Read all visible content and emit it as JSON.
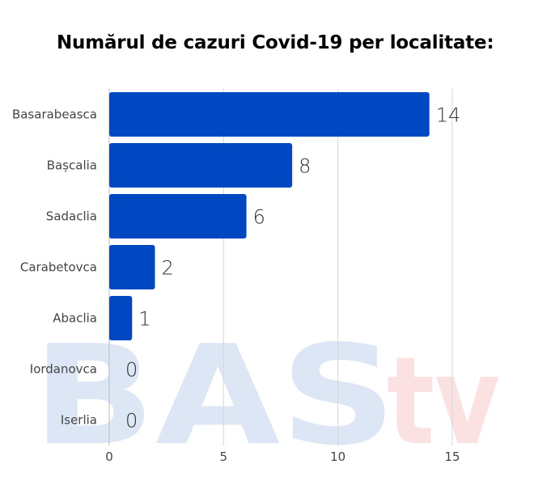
{
  "chart_data": {
    "type": "bar",
    "orientation": "horizontal",
    "title": "Numărul de cazuri Covid-19 per localitate:",
    "categories": [
      "Basarabeasca",
      "Bașcalia",
      "Sadaclia",
      "Carabetovca",
      "Abaclia",
      "Iordanovca",
      "Iserlia"
    ],
    "values": [
      14,
      8,
      6,
      2,
      1,
      0,
      0
    ],
    "data_labels": [
      "14",
      "8",
      "6",
      "2",
      "1",
      "0",
      "0"
    ],
    "xlim": [
      0,
      15
    ],
    "xticks": [
      "0",
      "5",
      "10",
      "15"
    ],
    "grid": true,
    "bar_color": "#0047c2",
    "watermark": {
      "text_main": "BAS",
      "text_accent": "tv",
      "main_color": "#dde6f5",
      "accent_color": "#fbe1e1"
    }
  }
}
